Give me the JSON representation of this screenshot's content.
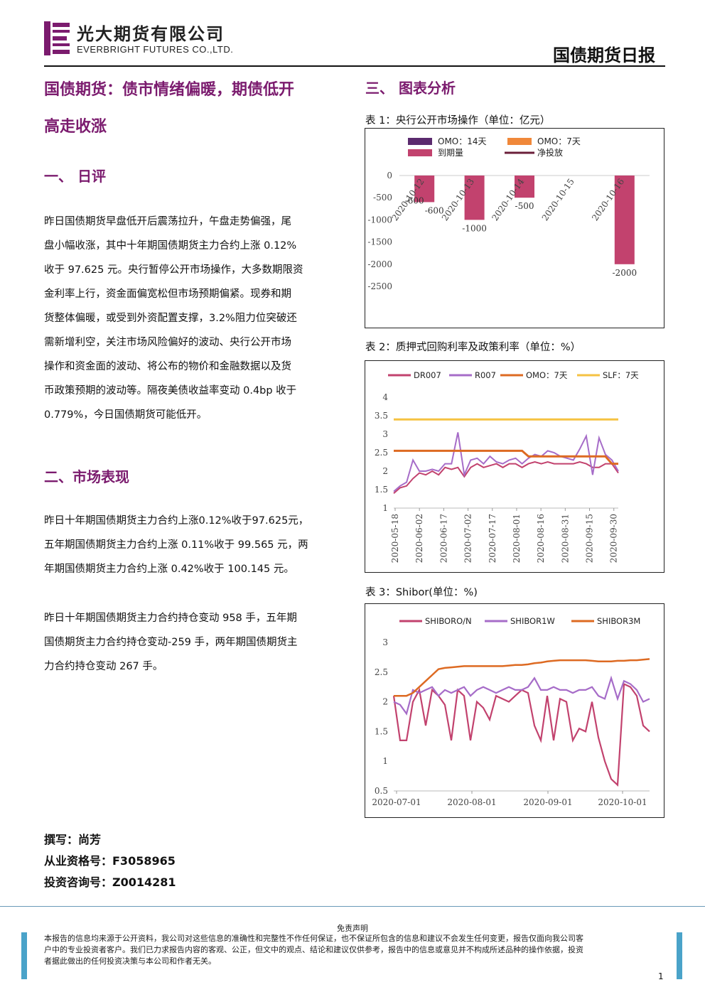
{
  "header": {
    "company_cn": "光大期货有限公司",
    "company_en": "EVERBRIGHT FUTURES CO.,LTD.",
    "report_type": "国债期货日报",
    "logo_color": "#7b1b6e"
  },
  "article": {
    "title_line1": "国债期货：债市情绪偏暖，期债低开",
    "title_line2": "高走收涨",
    "section1_title": "一、  日评",
    "section1_lines": [
      "昨日国债期货早盘低开后震荡拉升，午盘走势偏强，尾",
      "盘小幅收涨，其中十年期国债期货主力合约上涨 0.12%",
      "收于 97.625 元。央行暂停公开市场操作，大多数期限资",
      "金利率上行，资金面偏宽松但市场预期偏紧。现券和期",
      "货整体偏暖，或受到外资配置支撑，3.2%阻力位突破还",
      "需新增利空，关注市场风险偏好的波动、央行公开市场",
      "操作和资金面的波动、将公布的物价和金融数据以及货",
      "币政策预期的波动等。隔夜美债收益率变动 0.4bp 收于",
      "0.779%，今日国债期货可能低开。"
    ],
    "section2_title": "二、市场表现",
    "section2_para1_lines": [
      "昨日十年期国债期货主力合约上涨0.12%收于97.625元，",
      "五年期国债期货主力合约上涨 0.11%收于 99.565 元，两",
      "年期国债期货主力合约上涨 0.42%收于 100.145 元。"
    ],
    "section2_para2_lines": [
      "昨日十年期国债期货主力合约持仓变动 958 手，五年期",
      "国债期货主力合约持仓变动-259 手，两年期国债期货主",
      "力合约持仓变动 267 手。"
    ],
    "author": "撰写：尚芳",
    "license": "从业资格号：F3058965",
    "consult": "投资咨询号：Z0014281"
  },
  "charts_section": {
    "title": "三、  图表分析",
    "chart1_caption": "表 1：央行公开市场操作（单位：亿元）",
    "chart2_caption": "表 2：质押式回购利率及政策利率（单位：%）",
    "chart3_caption": "表 3：Shibor(单位：%)"
  },
  "chart_data": [
    {
      "type": "bar",
      "title": "",
      "legend": [
        "OMO：14天",
        "OMO：7天",
        "到期量",
        "净投放"
      ],
      "legend_colors": [
        "#5b2a6e",
        "#f0883a",
        "#c2426e",
        "#6b1f3a"
      ],
      "categories": [
        "2020-10-12",
        "2020-10-13",
        "2020-10-14",
        "2020-10-15",
        "2020-10-16"
      ],
      "series": [
        {
          "name": "到期量",
          "values": [
            -600,
            -1000,
            -500,
            null,
            -2000
          ]
        },
        {
          "name": "净投放",
          "values": [
            -600,
            -1000,
            -500,
            null,
            -2000
          ]
        }
      ],
      "data_labels": [
        "-600",
        "-600",
        "-1000",
        "-500",
        "-2000"
      ],
      "yticks": [
        "0",
        "-500",
        "-1000",
        "-1500",
        "-2000",
        "-2500"
      ],
      "ylim": [
        -2500,
        0
      ]
    },
    {
      "type": "line",
      "legend": [
        "DR007",
        "R007",
        "OMO：7天",
        "SLF：7天"
      ],
      "colors": [
        "#c2426e",
        "#a66cc8",
        "#dd6a22",
        "#f5c242"
      ],
      "xticks": [
        "2020-05-18",
        "2020-06-02",
        "2020-06-17",
        "2020-07-02",
        "2020-07-17",
        "2020-08-01",
        "2020-08-16",
        "2020-08-31",
        "2020-09-15",
        "2020-09-30"
      ],
      "yticks": [
        "1",
        "1.5",
        "2",
        "2.5",
        "3",
        "3.5",
        "4"
      ],
      "ylim": [
        1,
        4
      ],
      "series": [
        {
          "name": "DR007",
          "values": [
            1.4,
            1.55,
            1.6,
            1.8,
            1.95,
            1.9,
            2.0,
            1.9,
            2.1,
            2.05,
            2.1,
            1.85,
            2.1,
            2.2,
            2.1,
            2.15,
            2.2,
            2.1,
            2.2,
            2.2,
            2.1,
            2.2,
            2.25,
            2.2,
            2.25,
            2.2,
            2.2,
            2.2,
            2.2,
            2.25,
            2.2,
            2.1,
            2.1,
            2.2,
            2.2,
            1.95
          ]
        },
        {
          "name": "R007",
          "values": [
            1.45,
            1.6,
            1.7,
            2.3,
            2.0,
            2.0,
            2.05,
            2.0,
            2.2,
            2.2,
            3.05,
            1.9,
            2.3,
            2.35,
            2.2,
            2.4,
            2.25,
            2.2,
            2.3,
            2.35,
            2.2,
            2.35,
            2.45,
            2.4,
            2.55,
            2.5,
            2.4,
            2.35,
            2.3,
            2.6,
            2.95,
            1.9,
            2.9,
            2.45,
            2.3,
            2.0
          ]
        },
        {
          "name": "OMO：7天",
          "values": [
            2.55,
            2.55,
            2.55,
            2.55,
            2.55,
            2.55,
            2.55,
            2.55,
            2.55,
            2.55,
            2.55,
            2.55,
            2.55,
            2.55,
            2.55,
            2.55,
            2.55,
            2.55,
            2.55,
            2.55,
            2.55,
            2.4,
            2.4,
            2.4,
            2.4,
            2.4,
            2.4,
            2.4,
            2.4,
            2.4,
            2.4,
            2.4,
            2.4,
            2.4,
            2.2,
            2.2
          ]
        },
        {
          "name": "SLF：7天",
          "values": [
            3.4,
            3.4,
            3.4,
            3.4,
            3.4,
            3.4,
            3.4,
            3.4,
            3.4,
            3.4,
            3.4,
            3.4,
            3.4,
            3.4,
            3.4,
            3.4,
            3.4,
            3.4,
            3.4,
            3.4,
            3.4,
            3.4,
            3.4,
            3.4,
            3.4,
            3.4,
            3.4,
            3.4,
            3.4,
            3.4,
            3.4,
            3.4,
            3.4,
            3.4,
            3.4,
            3.4
          ]
        }
      ]
    },
    {
      "type": "line",
      "legend": [
        "SHIBORO/N",
        "SHIBOR1W",
        "SHIBOR3M"
      ],
      "colors": [
        "#c2426e",
        "#a66cc8",
        "#dd6a22"
      ],
      "xticks": [
        "2020-07-01",
        "2020-08-01",
        "2020-09-01",
        "2020-10-01"
      ],
      "yticks": [
        "0.5",
        "1",
        "1.5",
        "2",
        "2.5",
        "3"
      ],
      "ylim": [
        0.5,
        3
      ],
      "series": [
        {
          "name": "SHIBORO/N",
          "values": [
            2.1,
            1.35,
            1.35,
            2.0,
            2.2,
            1.6,
            2.2,
            2.1,
            1.95,
            1.35,
            2.2,
            2.1,
            1.35,
            2.0,
            1.9,
            1.7,
            2.1,
            2.05,
            2.0,
            2.1,
            2.2,
            2.15,
            1.6,
            1.35,
            2.1,
            1.35,
            2.05,
            2.0,
            1.35,
            1.55,
            1.5,
            2.0,
            1.4,
            1.0,
            0.7,
            0.6,
            2.3,
            2.25,
            2.1,
            1.6,
            1.5
          ]
        },
        {
          "name": "SHIBOR1W",
          "values": [
            2.0,
            1.95,
            1.8,
            2.2,
            2.15,
            2.2,
            2.25,
            2.1,
            2.2,
            2.15,
            2.2,
            2.25,
            2.1,
            2.2,
            2.25,
            2.2,
            2.15,
            2.2,
            2.25,
            2.2,
            2.2,
            2.25,
            2.4,
            2.2,
            2.2,
            2.25,
            2.2,
            2.2,
            2.15,
            2.2,
            2.2,
            2.25,
            2.1,
            2.05,
            2.4,
            2.05,
            2.35,
            2.3,
            2.2,
            2.0,
            2.05
          ]
        },
        {
          "name": "SHIBOR3M",
          "values": [
            2.1,
            2.1,
            2.1,
            2.15,
            2.25,
            2.35,
            2.45,
            2.55,
            2.57,
            2.58,
            2.59,
            2.6,
            2.6,
            2.6,
            2.6,
            2.6,
            2.6,
            2.6,
            2.61,
            2.62,
            2.62,
            2.63,
            2.65,
            2.66,
            2.68,
            2.69,
            2.7,
            2.7,
            2.7,
            2.7,
            2.7,
            2.69,
            2.68,
            2.68,
            2.68,
            2.69,
            2.69,
            2.7,
            2.7,
            2.71,
            2.72
          ]
        }
      ]
    }
  ],
  "footer": {
    "disclaimer_title": "免责声明",
    "disclaimer_lines": [
      "本报告的信息均来源于公开资料，我公司对这些信息的准确性和完整性不作任何保证，也不保证所包含的信息和建议不会发生任何变更，报告仅面向我公司客",
      "户中的专业投资者客户。我们已力求报告内容的客观、公正，但文中的观点、结论和建议仅供参考，报告中的信息或意见并不构成所述品种的操作依据，投资",
      "者据此做出的任何投资决策与本公司和作者无关。"
    ],
    "page_number": "1",
    "side_bar_color": "#4aa3c9"
  }
}
